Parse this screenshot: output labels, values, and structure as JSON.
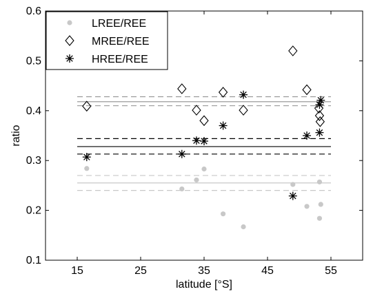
{
  "chart_data": {
    "type": "scatter",
    "xlabel": "latitude [°S]",
    "ylabel": "ratio",
    "xlim": [
      10,
      60
    ],
    "ylim": [
      0.1,
      0.6
    ],
    "xticks": [
      "15",
      "25",
      "35",
      "45",
      "55"
    ],
    "yticks": [
      "0.1",
      "0.2",
      "0.3",
      "0.4",
      "0.5",
      "0.6"
    ],
    "xtick_values": [
      15,
      25,
      35,
      45,
      55
    ],
    "ytick_values": [
      0.1,
      0.2,
      0.3,
      0.4,
      0.5,
      0.6
    ],
    "grid": false,
    "legend_position": "top-left",
    "series": [
      {
        "name": "LREE/REE",
        "marker": "filled-circle",
        "color": "#c8c8c8",
        "points": [
          [
            16.5,
            0.284
          ],
          [
            31.5,
            0.243
          ],
          [
            33.8,
            0.261
          ],
          [
            35.0,
            0.283
          ],
          [
            38.0,
            0.193
          ],
          [
            41.2,
            0.167
          ],
          [
            49.0,
            0.252
          ],
          [
            51.2,
            0.208
          ],
          [
            53.2,
            0.257
          ],
          [
            53.4,
            0.212
          ],
          [
            53.2,
            0.184
          ]
        ]
      },
      {
        "name": "MREE/REE",
        "marker": "open-diamond",
        "color": "#000000",
        "points": [
          [
            16.5,
            0.409
          ],
          [
            31.5,
            0.444
          ],
          [
            33.8,
            0.401
          ],
          [
            35.0,
            0.38
          ],
          [
            38.0,
            0.437
          ],
          [
            41.2,
            0.401
          ],
          [
            49.0,
            0.52
          ],
          [
            51.2,
            0.442
          ],
          [
            53.2,
            0.39
          ],
          [
            53.3,
            0.378
          ],
          [
            53.1,
            0.405
          ]
        ]
      },
      {
        "name": "HREE/REE",
        "marker": "asterisk",
        "color": "#000000",
        "points": [
          [
            16.5,
            0.307
          ],
          [
            31.5,
            0.313
          ],
          [
            33.8,
            0.34
          ],
          [
            35.0,
            0.339
          ],
          [
            38.0,
            0.37
          ],
          [
            41.2,
            0.432
          ],
          [
            49.0,
            0.229
          ],
          [
            51.2,
            0.35
          ],
          [
            53.2,
            0.356
          ],
          [
            53.4,
            0.421
          ],
          [
            53.2,
            0.412
          ]
        ]
      }
    ],
    "reference_lines": [
      {
        "series": "LREE/REE",
        "mean": 0.255,
        "lower": 0.24,
        "upper": 0.27,
        "color": "#c8c8c8"
      },
      {
        "series": "MREE/REE",
        "mean": 0.418,
        "lower": 0.41,
        "upper": 0.428,
        "color": "#9a9a9a"
      },
      {
        "series": "HREE/REE",
        "mean": 0.328,
        "lower": 0.313,
        "upper": 0.344,
        "color": "#000000"
      }
    ]
  }
}
